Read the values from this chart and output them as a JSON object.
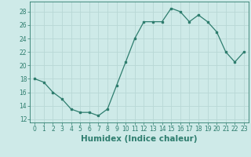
{
  "x": [
    0,
    1,
    2,
    3,
    4,
    5,
    6,
    7,
    8,
    9,
    10,
    11,
    12,
    13,
    14,
    15,
    16,
    17,
    18,
    19,
    20,
    21,
    22,
    23
  ],
  "y": [
    18,
    17.5,
    16,
    15,
    13.5,
    13,
    13,
    12.5,
    13.5,
    17,
    20.5,
    24,
    26.5,
    26.5,
    26.5,
    28.5,
    28,
    26.5,
    27.5,
    26.5,
    25,
    22,
    20.5,
    22
  ],
  "line_color": "#2e7d6e",
  "marker": "s",
  "marker_size": 2.0,
  "bg_color": "#ceeae8",
  "grid_color": "#b8d8d5",
  "xlabel": "Humidex (Indice chaleur)",
  "ylim": [
    11.5,
    29.5
  ],
  "xlim": [
    -0.5,
    23.5
  ],
  "yticks": [
    12,
    14,
    16,
    18,
    20,
    22,
    24,
    26,
    28
  ],
  "xticks": [
    0,
    1,
    2,
    3,
    4,
    5,
    6,
    7,
    8,
    9,
    10,
    11,
    12,
    13,
    14,
    15,
    16,
    17,
    18,
    19,
    20,
    21,
    22,
    23
  ],
  "tick_fontsize": 5.5,
  "xlabel_fontsize": 7.5,
  "tick_color": "#2e7d6e",
  "axis_color": "#2e7d6e"
}
